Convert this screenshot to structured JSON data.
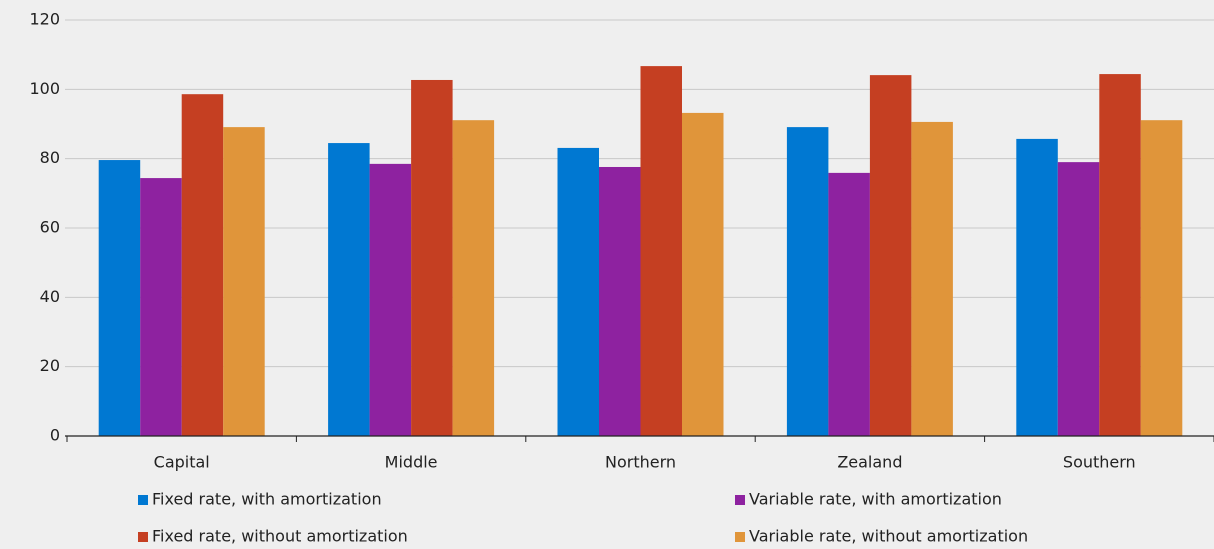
{
  "chart_data": {
    "type": "bar",
    "categories": [
      "Capital",
      "Middle",
      "Northern",
      "Zealand",
      "Southern"
    ],
    "series": [
      {
        "name": "Fixed rate, with amortization",
        "color": "#0078d2",
        "values": [
          79.6,
          84.5,
          83.1,
          89.1,
          85.7
        ]
      },
      {
        "name": "Variable rate, with amortization",
        "color": "#8e22a0",
        "values": [
          74.4,
          78.5,
          77.6,
          75.9,
          79.0
        ]
      },
      {
        "name": "Fixed rate, without amortization",
        "color": "#c53f22",
        "values": [
          98.6,
          102.7,
          106.7,
          104.1,
          104.4
        ]
      },
      {
        "name": "Variable rate, without amortization",
        "color": "#e0953a",
        "values": [
          89.1,
          91.1,
          93.2,
          90.6,
          91.1
        ]
      }
    ],
    "ylim": [
      0,
      120
    ],
    "yticks": [
      0,
      20,
      40,
      60,
      80,
      100,
      120
    ],
    "grid": true
  }
}
